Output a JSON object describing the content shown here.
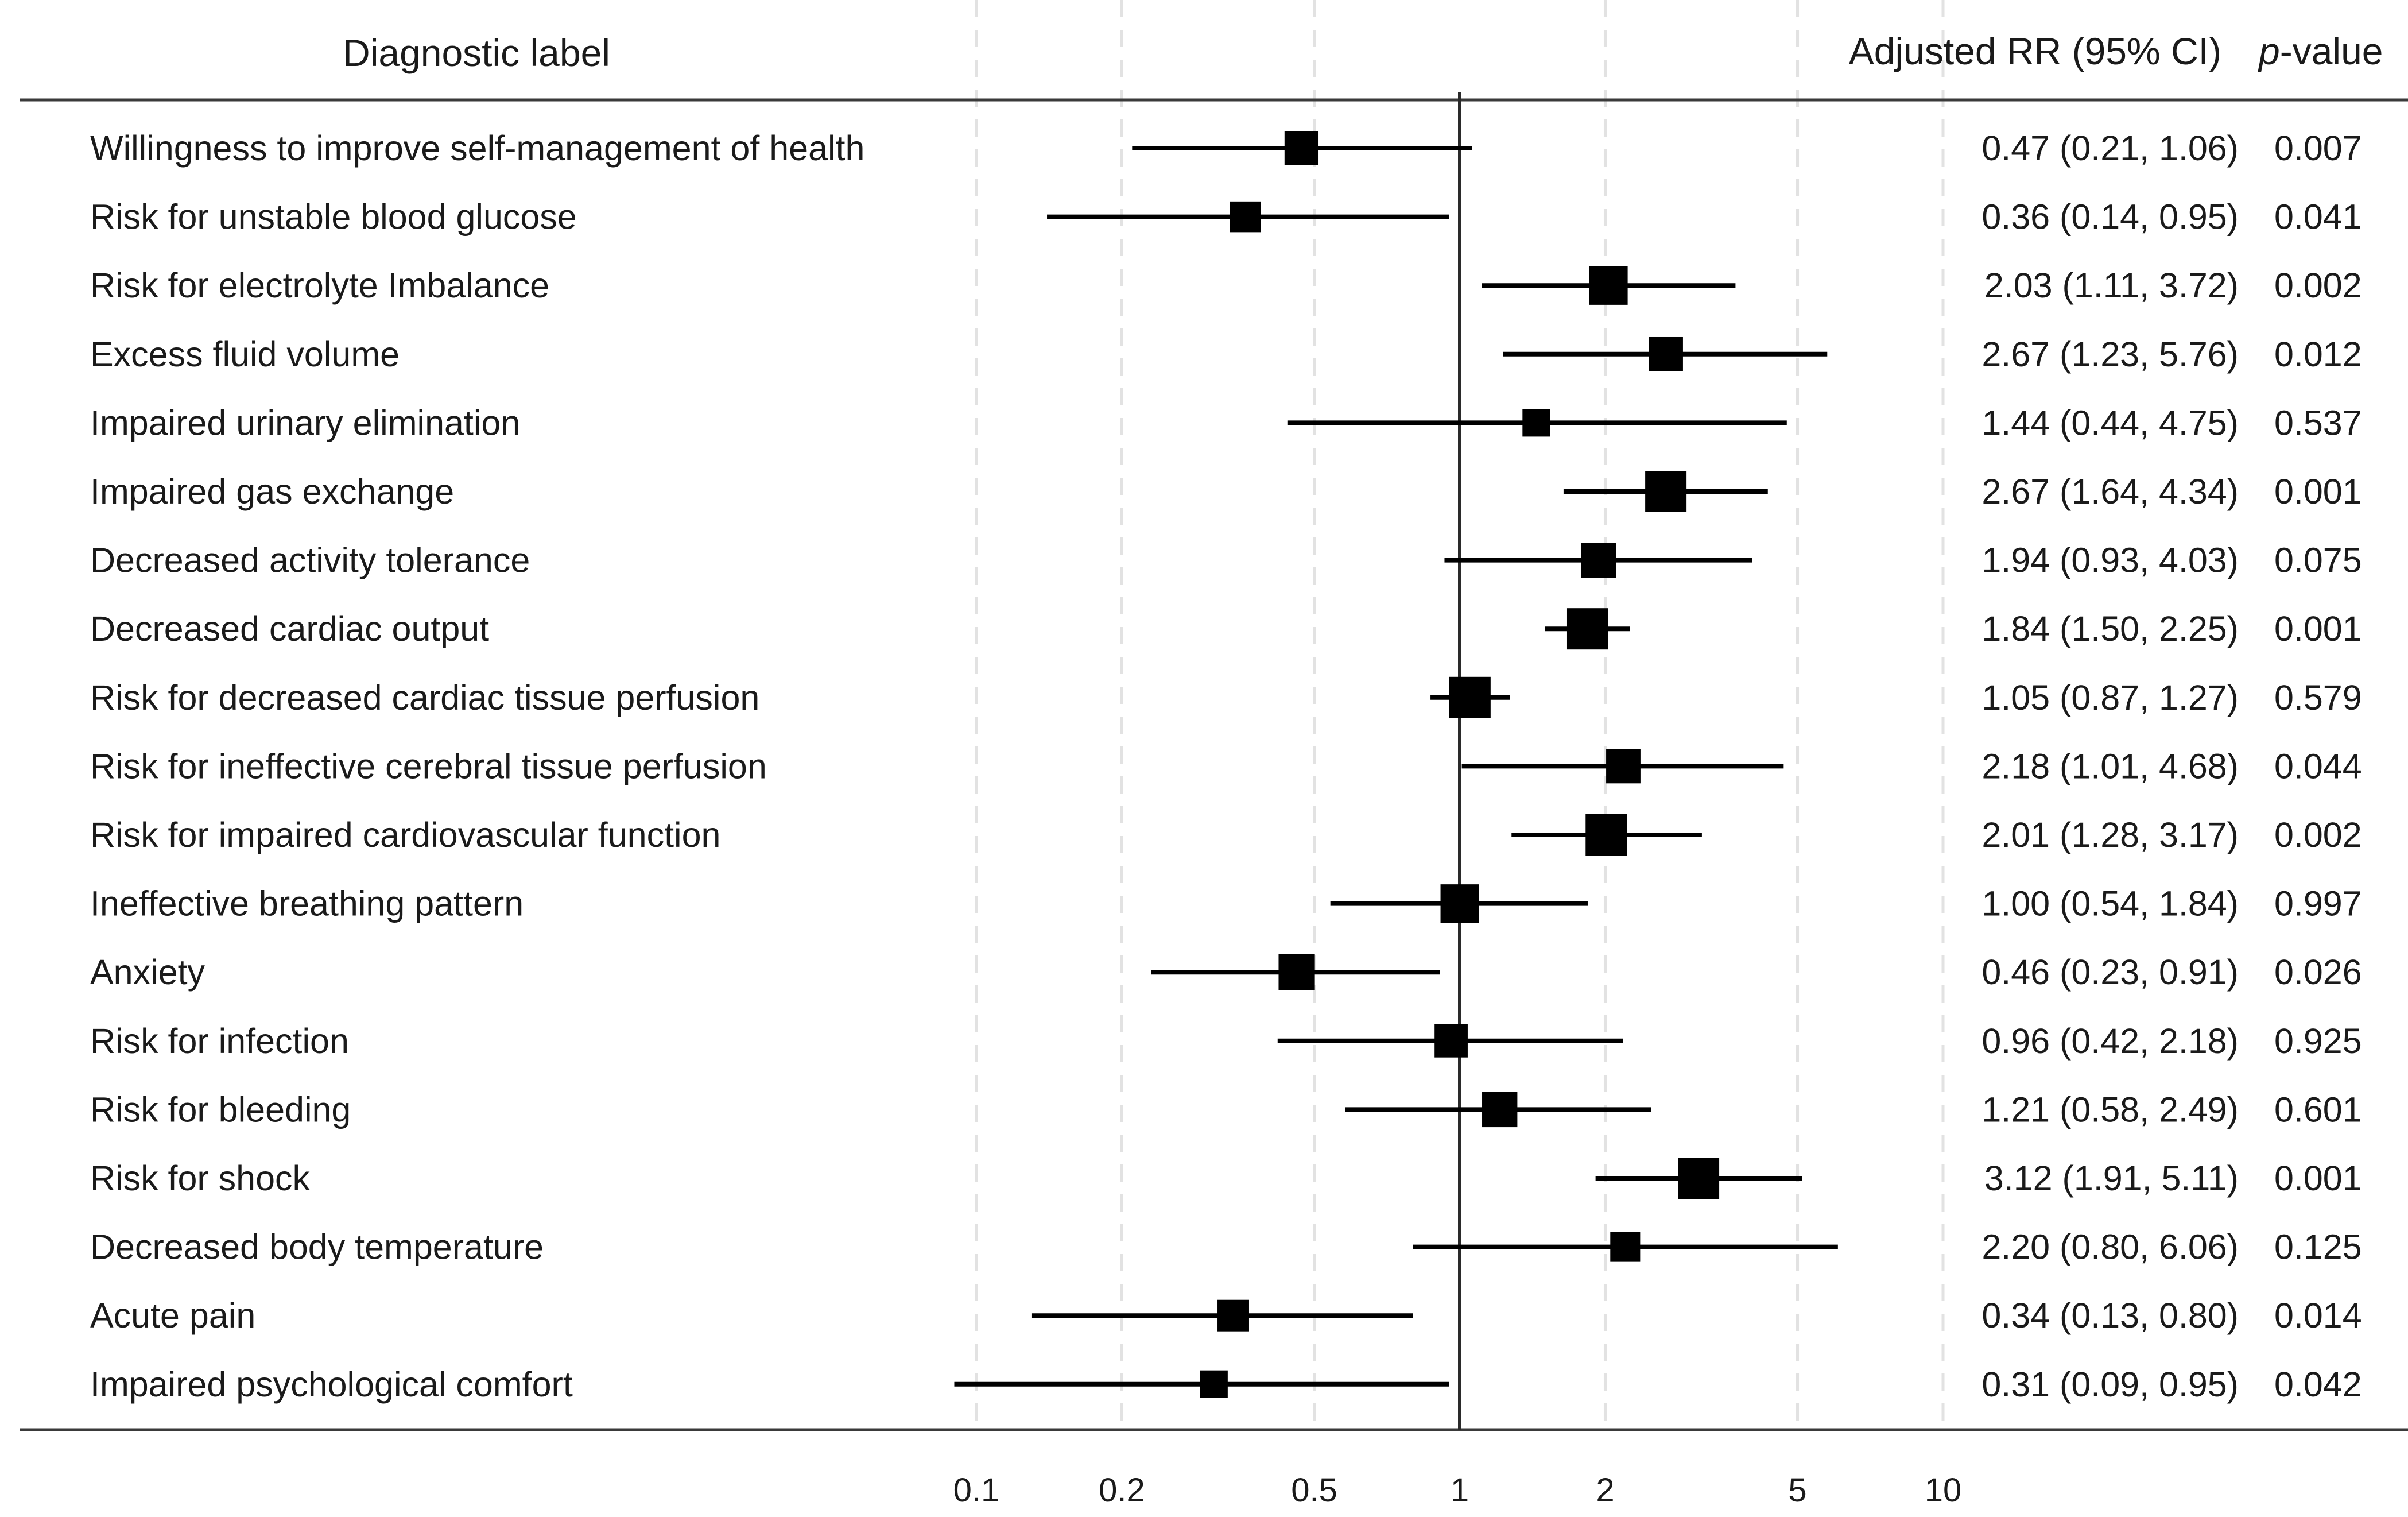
{
  "headers": {
    "label": "Diagnostic label",
    "estimate": "Adjusted RR (95% CI)",
    "pvalue_italic": "p",
    "pvalue_rest": "-value"
  },
  "chart_data": {
    "type": "forest",
    "x_scale": "log",
    "x_ticks": [
      0.1,
      0.2,
      0.5,
      1,
      2,
      5,
      10
    ],
    "x_tick_labels": [
      "0.1",
      "0.2",
      "0.5",
      "1",
      "2",
      "5",
      "10"
    ],
    "reference_line": 1,
    "grid": "vertical dashed at ticks",
    "rows": [
      {
        "label": "Willingness to improve self-management of health",
        "rr": 0.47,
        "lo": 0.21,
        "hi": 1.06,
        "ci_text": "0.47 (0.21, 1.06)",
        "p": "0.007"
      },
      {
        "label": "Risk for unstable blood glucose",
        "rr": 0.36,
        "lo": 0.14,
        "hi": 0.95,
        "ci_text": "0.36 (0.14, 0.95)",
        "p": "0.041"
      },
      {
        "label": "Risk for electrolyte Imbalance",
        "rr": 2.03,
        "lo": 1.11,
        "hi": 3.72,
        "ci_text": "2.03 (1.11, 3.72)",
        "p": "0.002"
      },
      {
        "label": "Excess fluid volume",
        "rr": 2.67,
        "lo": 1.23,
        "hi": 5.76,
        "ci_text": "2.67 (1.23, 5.76)",
        "p": "0.012"
      },
      {
        "label": "Impaired urinary elimination",
        "rr": 1.44,
        "lo": 0.44,
        "hi": 4.75,
        "ci_text": "1.44 (0.44, 4.75)",
        "p": "0.537"
      },
      {
        "label": "Impaired gas exchange",
        "rr": 2.67,
        "lo": 1.64,
        "hi": 4.34,
        "ci_text": "2.67 (1.64, 4.34)",
        "p": "0.001"
      },
      {
        "label": "Decreased activity tolerance",
        "rr": 1.94,
        "lo": 0.93,
        "hi": 4.03,
        "ci_text": "1.94 (0.93, 4.03)",
        "p": "0.075"
      },
      {
        "label": "Decreased cardiac output",
        "rr": 1.84,
        "lo": 1.5,
        "hi": 2.25,
        "ci_text": "1.84 (1.50, 2.25)",
        "p": "0.001"
      },
      {
        "label": "Risk for decreased cardiac tissue perfusion",
        "rr": 1.05,
        "lo": 0.87,
        "hi": 1.27,
        "ci_text": "1.05 (0.87, 1.27)",
        "p": "0.579"
      },
      {
        "label": "Risk for ineffective cerebral tissue perfusion",
        "rr": 2.18,
        "lo": 1.01,
        "hi": 4.68,
        "ci_text": "2.18 (1.01, 4.68)",
        "p": "0.044"
      },
      {
        "label": "Risk for impaired cardiovascular function",
        "rr": 2.01,
        "lo": 1.28,
        "hi": 3.17,
        "ci_text": "2.01 (1.28, 3.17)",
        "p": "0.002"
      },
      {
        "label": "Ineffective breathing pattern",
        "rr": 1.0,
        "lo": 0.54,
        "hi": 1.84,
        "ci_text": "1.00 (0.54, 1.84)",
        "p": "0.997"
      },
      {
        "label": "Anxiety",
        "rr": 0.46,
        "lo": 0.23,
        "hi": 0.91,
        "ci_text": "0.46 (0.23, 0.91)",
        "p": "0.026"
      },
      {
        "label": "Risk for infection",
        "rr": 0.96,
        "lo": 0.42,
        "hi": 2.18,
        "ci_text": "0.96 (0.42, 2.18)",
        "p": "0.925"
      },
      {
        "label": "Risk for bleeding",
        "rr": 1.21,
        "lo": 0.58,
        "hi": 2.49,
        "ci_text": "1.21 (0.58, 2.49)",
        "p": "0.601"
      },
      {
        "label": "Risk for shock",
        "rr": 3.12,
        "lo": 1.91,
        "hi": 5.11,
        "ci_text": "3.12 (1.91, 5.11)",
        "p": "0.001"
      },
      {
        "label": "Decreased body temperature",
        "rr": 2.2,
        "lo": 0.8,
        "hi": 6.06,
        "ci_text": "2.20 (0.80, 6.06)",
        "p": "0.125"
      },
      {
        "label": "Acute pain",
        "rr": 0.34,
        "lo": 0.13,
        "hi": 0.8,
        "ci_text": "0.34 (0.13, 0.80)",
        "p": "0.014"
      },
      {
        "label": "Impaired psychological comfort",
        "rr": 0.31,
        "lo": 0.09,
        "hi": 0.95,
        "ci_text": "0.31 (0.09, 0.95)",
        "p": "0.042"
      }
    ]
  }
}
